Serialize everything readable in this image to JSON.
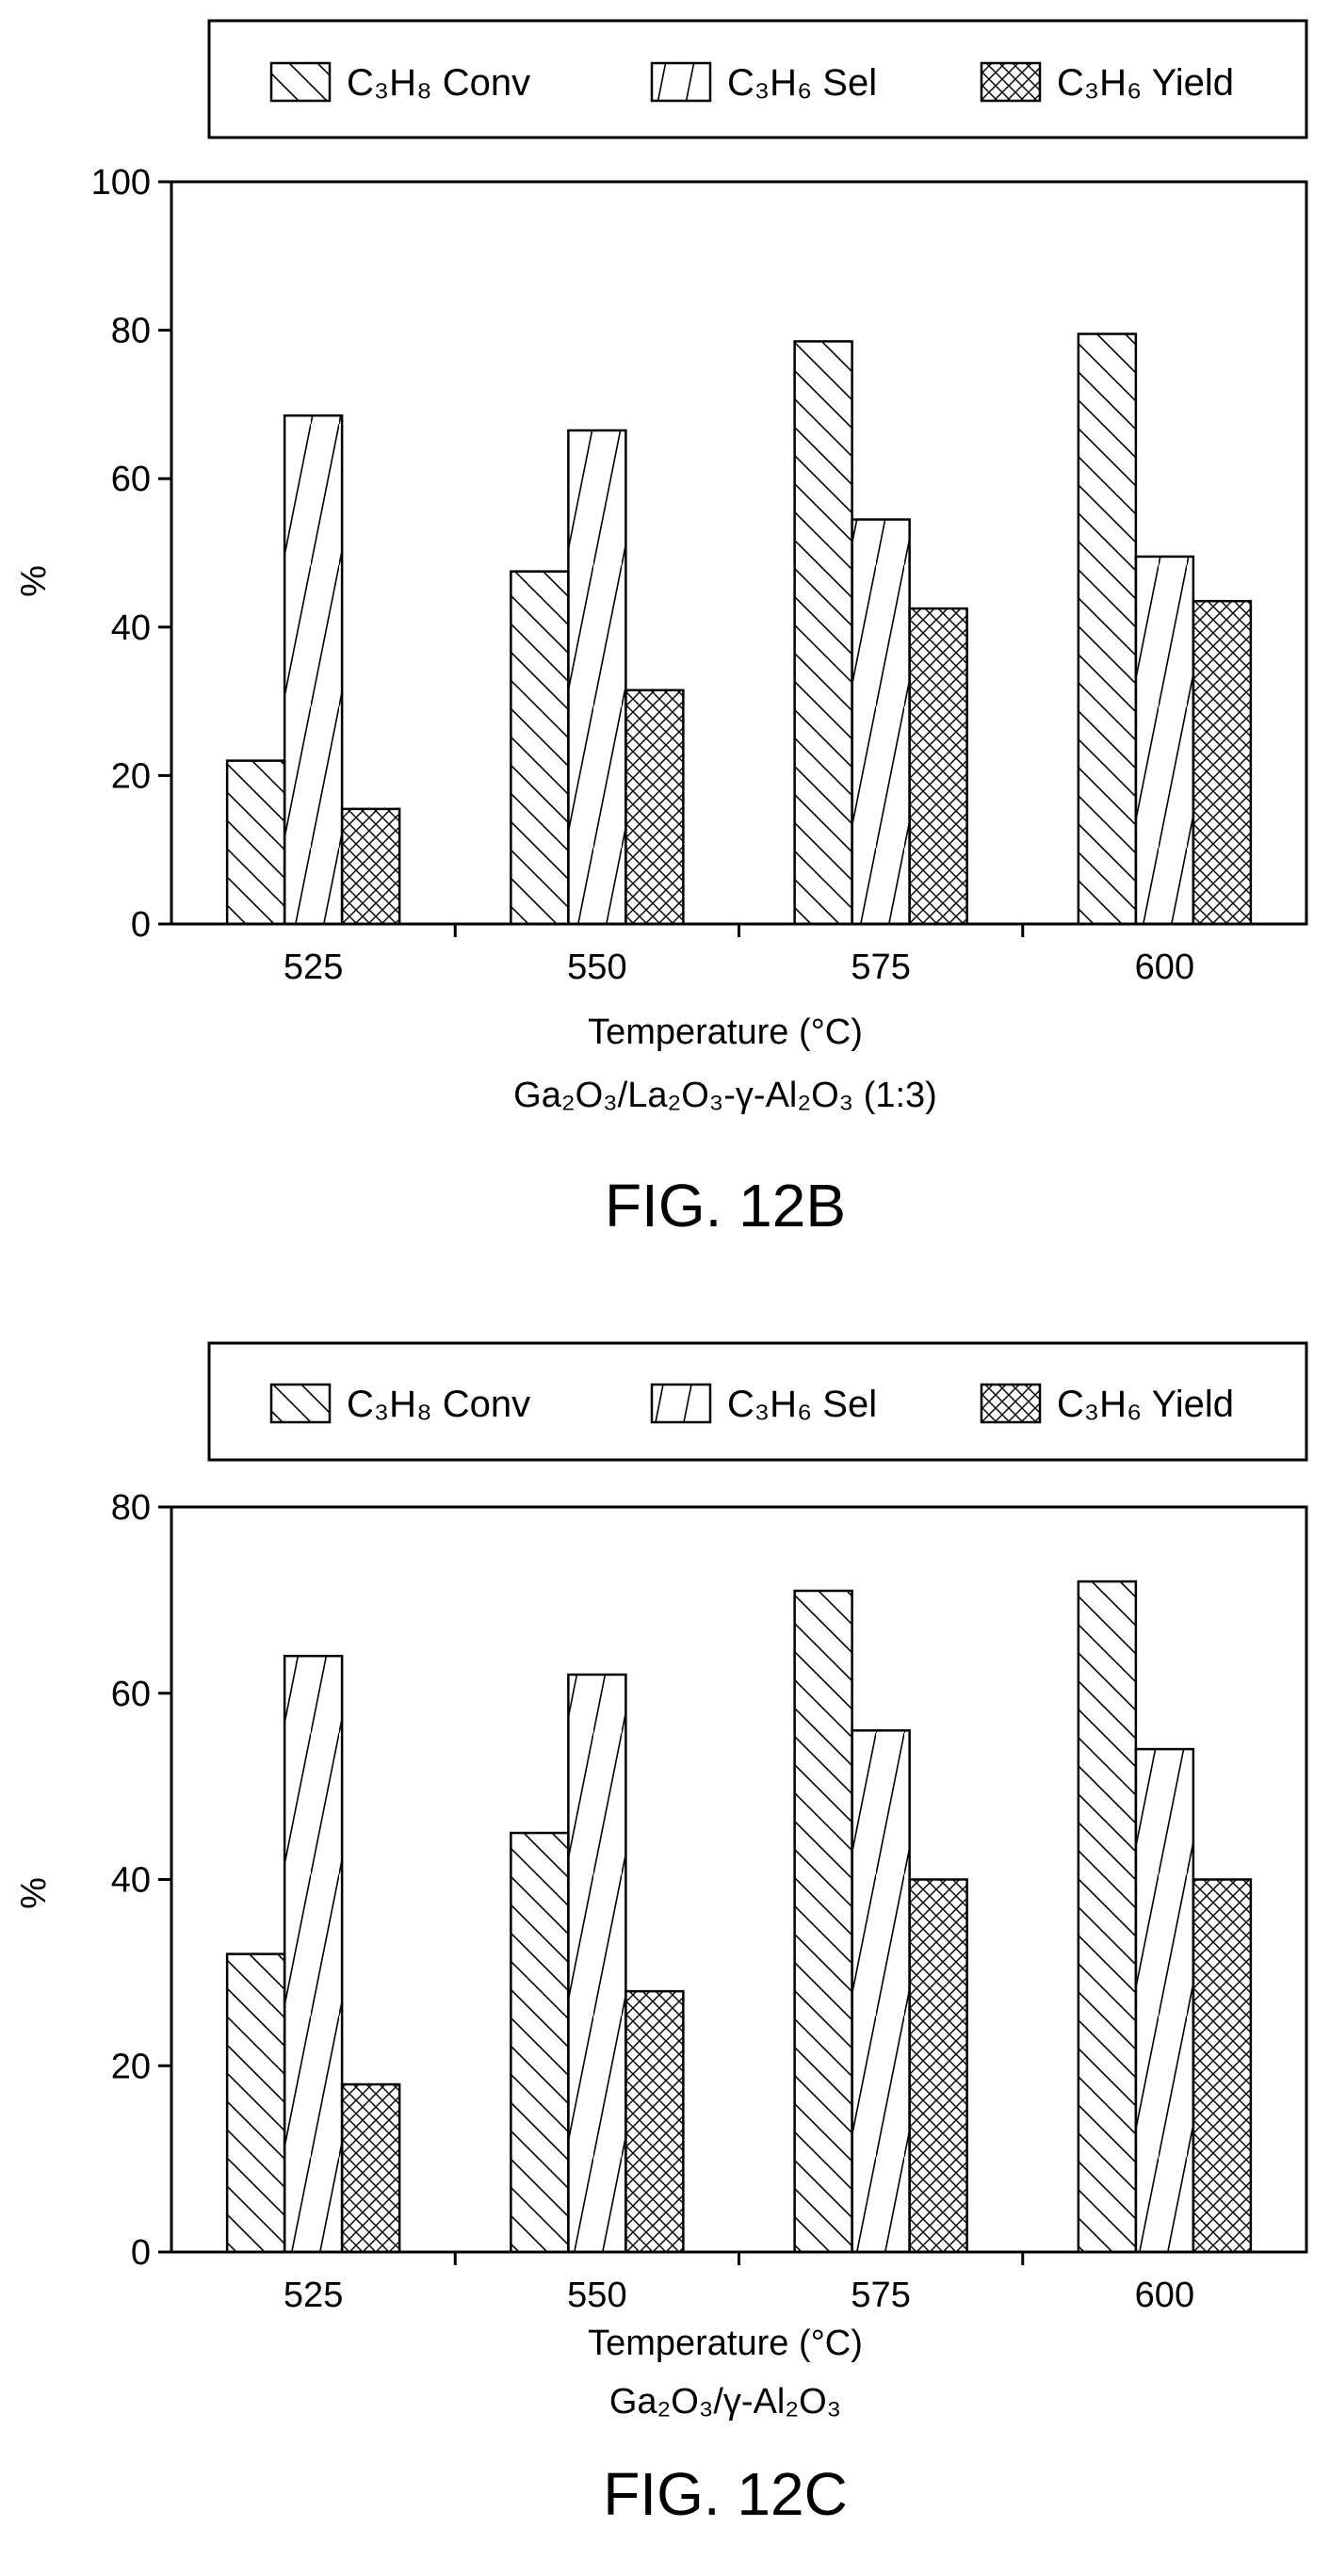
{
  "chart_data": [
    {
      "type": "bar",
      "caption": "FIG. 12B",
      "xlabel": "Temperature (°C)",
      "subtitle": "Ga₂O₃/La₂O₃-γ-Al₂O₃ (1:3)",
      "ylabel": "%",
      "categories": [
        "525",
        "550",
        "575",
        "600"
      ],
      "ylim": [
        0,
        100
      ],
      "yticks": [
        "0",
        "20",
        "40",
        "60",
        "80",
        "100"
      ],
      "legend_position": "top",
      "series": [
        {
          "name": "C₃H₈ Conv",
          "pattern": "back-diagonal",
          "values": [
            22,
            47.5,
            78.5,
            79.5
          ]
        },
        {
          "name": "C₃H₆ Sel",
          "pattern": "forward-diagonal",
          "values": [
            68.5,
            66.5,
            54.5,
            49.5
          ]
        },
        {
          "name": "C₃H₆ Yield",
          "pattern": "crosshatch",
          "values": [
            15.5,
            31.5,
            42.5,
            43.5
          ]
        }
      ]
    },
    {
      "type": "bar",
      "caption": "FIG. 12C",
      "xlabel": "Temperature (°C)",
      "subtitle": "Ga₂O₃/γ-Al₂O₃",
      "ylabel": "%",
      "categories": [
        "525",
        "550",
        "575",
        "600"
      ],
      "ylim": [
        0,
        80
      ],
      "yticks": [
        "0",
        "20",
        "40",
        "60",
        "80"
      ],
      "legend_position": "top",
      "series": [
        {
          "name": "C₃H₈ Conv",
          "pattern": "back-diagonal",
          "values": [
            32,
            45,
            71,
            72
          ]
        },
        {
          "name": "C₃H₆ Sel",
          "pattern": "forward-diagonal",
          "values": [
            64,
            62,
            56,
            54
          ]
        },
        {
          "name": "C₃H₆ Yield",
          "pattern": "crosshatch",
          "values": [
            18,
            28,
            40,
            40
          ]
        }
      ]
    }
  ]
}
